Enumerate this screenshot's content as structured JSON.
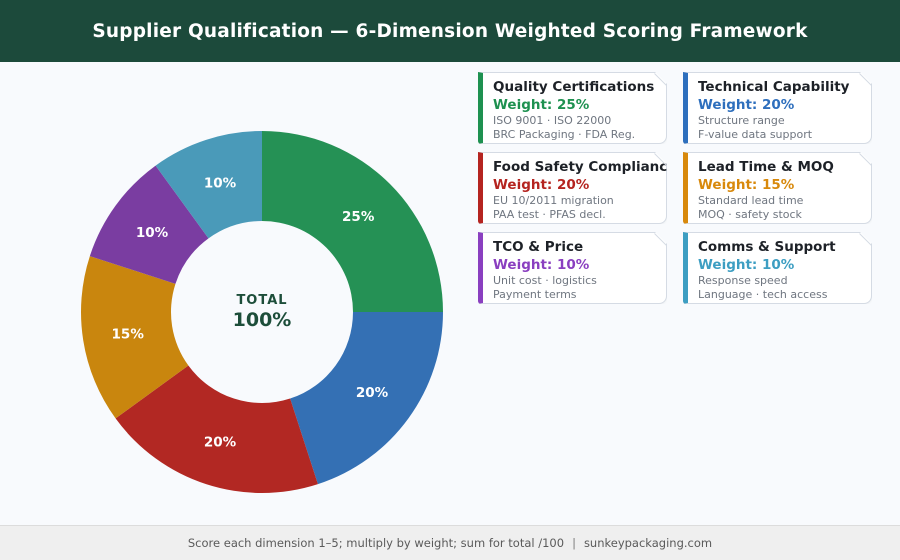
{
  "header": {
    "title": "Supplier Qualification — 6-Dimension Weighted Scoring Framework",
    "bg_color": "#1c4a3b"
  },
  "chart_data": {
    "type": "pie",
    "subtype": "donut",
    "title": "Supplier Qualification — 6-Dimension Weighted Scoring Framework",
    "start_angle_deg": 0,
    "direction": "clockwise",
    "inner_radius_ratio": 0.5,
    "legend_position": "none",
    "center_label": {
      "line1": "TOTAL",
      "line2": "100%"
    },
    "center_label_color": "#1d4e3a",
    "slices": [
      {
        "label": "Quality Certifications",
        "value": 25,
        "display": "25%",
        "color": "#259155"
      },
      {
        "label": "Technical Capability",
        "value": 20,
        "display": "20%",
        "color": "#3470b4"
      },
      {
        "label": "Food Safety Compliance",
        "value": 20,
        "display": "20%",
        "color": "#b22823"
      },
      {
        "label": "Lead Time & MOQ",
        "value": 15,
        "display": "15%",
        "color": "#c9860e"
      },
      {
        "label": "TCO & Price",
        "value": 10,
        "display": "10%",
        "color": "#7a3da1"
      },
      {
        "label": "Comms & Support",
        "value": 10,
        "display": "10%",
        "color": "#4a9ab9"
      }
    ]
  },
  "cards": [
    {
      "title": "Quality Certifications",
      "weight": "Weight: 25%",
      "line1": "ISO 9001 · ISO 22000",
      "line2": "BRC Packaging · FDA Reg.",
      "accent": "#1e9150"
    },
    {
      "title": "Technical Capability",
      "weight": "Weight: 20%",
      "line1": "Structure range",
      "line2": "F-value data support",
      "accent": "#2e6fbd"
    },
    {
      "title": "Food Safety Compliance",
      "weight": "Weight: 20%",
      "line1": "EU 10/2011 migration",
      "line2": "PAA test · PFAS decl.",
      "accent": "#b52420"
    },
    {
      "title": "Lead Time & MOQ",
      "weight": "Weight: 15%",
      "line1": "Standard lead time",
      "line2": "MOQ · safety stock",
      "accent": "#d8890c"
    },
    {
      "title": "TCO & Price",
      "weight": "Weight: 10%",
      "line1": "Unit cost · logistics",
      "line2": "Payment terms",
      "accent": "#8a3fc0"
    },
    {
      "title": "Comms & Support",
      "weight": "Weight: 10%",
      "line1": "Response speed",
      "line2": "Language · tech access",
      "accent": "#3d9ec2"
    }
  ],
  "footer": {
    "note": "Score each dimension 1–5; multiply by weight; sum for total /100",
    "separator": "|",
    "site": "sunkeypackaging.com"
  }
}
